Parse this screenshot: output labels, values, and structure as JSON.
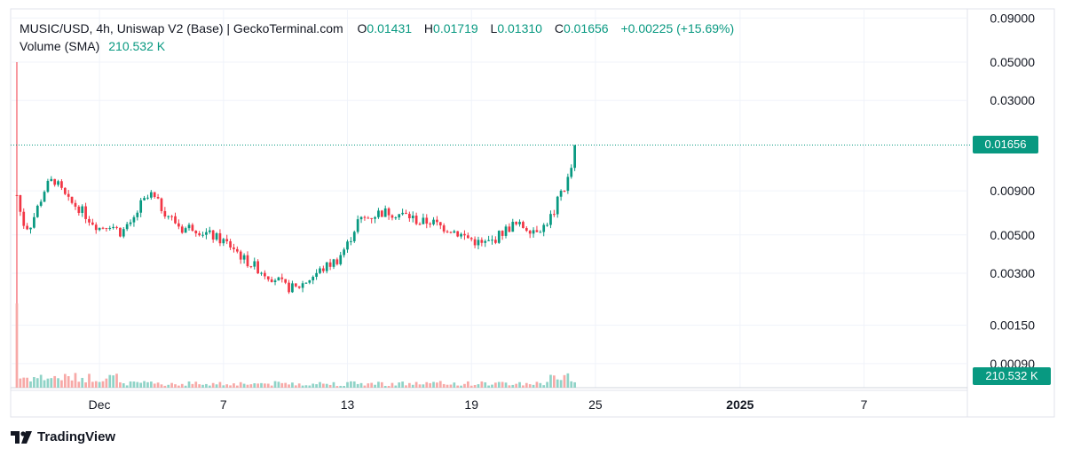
{
  "legend": {
    "title": "MUSIC/USD, 4h, Uniswap V2 (Base) | GeckoTerminal.com",
    "open_label": "O",
    "open": "0.01431",
    "high_label": "H",
    "high": "0.01719",
    "low_label": "L",
    "low": "0.01310",
    "close_label": "C",
    "close": "0.01656",
    "change": "+0.00225 (+15.69%)",
    "volume_label": "Volume (SMA)",
    "volume_value": "210.532 K"
  },
  "last_price_badge": "0.01656",
  "volume_badge": "210.532 K",
  "brand": {
    "name": "TradingView"
  },
  "colors": {
    "up": "#089981",
    "down": "#f23645",
    "up_volume": "#8fd3c7",
    "down_volume": "#f7a9a7",
    "grid": "#f0f3fa",
    "axis_text": "#131722"
  },
  "icons": {
    "brand_logo": "tradingview-logo-icon"
  },
  "chart_data": {
    "type": "candlestick",
    "pair": "MUSIC/USD",
    "interval": "4h",
    "source": "Uniswap V2 (Base) | GeckoTerminal.com",
    "y_scale": "log",
    "y_ticks": [
      "0.09000",
      "0.05000",
      "0.03000",
      "0.00900",
      "0.00500",
      "0.00300",
      "0.00150",
      "0.00090"
    ],
    "x_ticks": [
      {
        "label": "Dec",
        "day": 1
      },
      {
        "label": "7",
        "day": 7
      },
      {
        "label": "13",
        "day": 13
      },
      {
        "label": "19",
        "day": 19
      },
      {
        "label": "25",
        "day": 25
      },
      {
        "label": "2025",
        "day": 32,
        "bold": true
      },
      {
        "label": "7",
        "day": 38
      }
    ],
    "x_unit": "days from Dec 1",
    "x_range_days": [
      -3.3,
      43
    ],
    "last_price": 0.01656,
    "price_path_days": [
      -3.0,
      -2.8,
      -2.6,
      -2.3,
      -2.0,
      -1.6,
      -1.2,
      -0.8,
      -0.5,
      0,
      0.5,
      1,
      1.5,
      2,
      2.5,
      3,
      3.5,
      4,
      4.5,
      5,
      5.5,
      6,
      6.5,
      7,
      7.5,
      8,
      8.5,
      9,
      9.5,
      10,
      10.5,
      11,
      11.5,
      12,
      12.5,
      13,
      13.5,
      14,
      14.5,
      15,
      15.5,
      16,
      16.5,
      17,
      17.5,
      18,
      18.5,
      19,
      19.5,
      20,
      20.5,
      21,
      21.5,
      22,
      22.5,
      23,
      23.3,
      23.6,
      23.9,
      24.1
    ],
    "price_path_values": [
      0.0085,
      0.0065,
      0.0055,
      0.0058,
      0.0072,
      0.0095,
      0.0105,
      0.0088,
      0.0078,
      0.0072,
      0.0062,
      0.0055,
      0.0058,
      0.0052,
      0.0056,
      0.0075,
      0.0085,
      0.0072,
      0.0062,
      0.0054,
      0.0056,
      0.0052,
      0.0049,
      0.0046,
      0.0042,
      0.0036,
      0.0033,
      0.003,
      0.0028,
      0.0025,
      0.00245,
      0.0027,
      0.003,
      0.0033,
      0.0036,
      0.0044,
      0.006,
      0.0063,
      0.0067,
      0.0068,
      0.0066,
      0.0064,
      0.0059,
      0.006,
      0.0056,
      0.0054,
      0.005,
      0.0047,
      0.0044,
      0.0046,
      0.0052,
      0.0057,
      0.0056,
      0.0054,
      0.0056,
      0.0068,
      0.0088,
      0.0098,
      0.013,
      0.01656
    ],
    "spike": {
      "day": -3.0,
      "high": 0.05,
      "low": 0.0008
    },
    "volume_scale_max": 1,
    "volume_spike": {
      "day": -3.0,
      "value": 1.0
    }
  }
}
